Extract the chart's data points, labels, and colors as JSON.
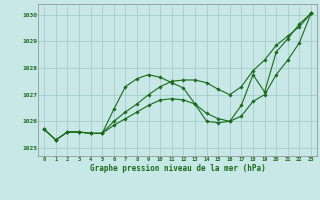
{
  "xlabel": "Graphe pression niveau de la mer (hPa)",
  "xlim": [
    -0.5,
    23.5
  ],
  "ylim": [
    1024.7,
    1030.4
  ],
  "yticks": [
    1025,
    1026,
    1027,
    1028,
    1029,
    1030
  ],
  "xticks": [
    0,
    1,
    2,
    3,
    4,
    5,
    6,
    7,
    8,
    9,
    10,
    11,
    12,
    13,
    14,
    15,
    16,
    17,
    18,
    19,
    20,
    21,
    22,
    23
  ],
  "bg_color": "#c8e8e8",
  "grid_color": "#a0c8c8",
  "line_color": "#1a6b1a",
  "series1_x": [
    0,
    1,
    2,
    3,
    4,
    5,
    6,
    7,
    8,
    9,
    10,
    11,
    12,
    13,
    14,
    15,
    16,
    17,
    18,
    19,
    20,
    21,
    22,
    23
  ],
  "series1_y": [
    1025.7,
    1025.3,
    1025.6,
    1025.6,
    1025.55,
    1025.55,
    1026.45,
    1027.3,
    1027.6,
    1027.75,
    1027.65,
    1027.45,
    1027.25,
    1026.65,
    1026.0,
    1025.95,
    1026.0,
    1026.6,
    1027.75,
    1027.1,
    1028.6,
    1029.1,
    1029.65,
    1030.05
  ],
  "series2_x": [
    0,
    1,
    2,
    3,
    4,
    5,
    6,
    7,
    8,
    9,
    10,
    11,
    12,
    13,
    14,
    15,
    16,
    17,
    18,
    19,
    20,
    21,
    22,
    23
  ],
  "series2_y": [
    1025.7,
    1025.3,
    1025.6,
    1025.6,
    1025.55,
    1025.55,
    1026.0,
    1026.35,
    1026.65,
    1027.0,
    1027.3,
    1027.5,
    1027.55,
    1027.55,
    1027.45,
    1027.2,
    1027.0,
    1027.3,
    1027.9,
    1028.3,
    1028.85,
    1029.2,
    1029.55,
    1030.05
  ],
  "series3_x": [
    0,
    1,
    2,
    3,
    4,
    5,
    6,
    7,
    8,
    9,
    10,
    11,
    12,
    13,
    14,
    15,
    16,
    17,
    18,
    19,
    20,
    21,
    22,
    23
  ],
  "series3_y": [
    1025.7,
    1025.3,
    1025.6,
    1025.6,
    1025.55,
    1025.55,
    1025.85,
    1026.1,
    1026.35,
    1026.6,
    1026.8,
    1026.85,
    1026.8,
    1026.65,
    1026.3,
    1026.1,
    1026.0,
    1026.2,
    1026.75,
    1027.0,
    1027.75,
    1028.3,
    1028.95,
    1030.05
  ]
}
